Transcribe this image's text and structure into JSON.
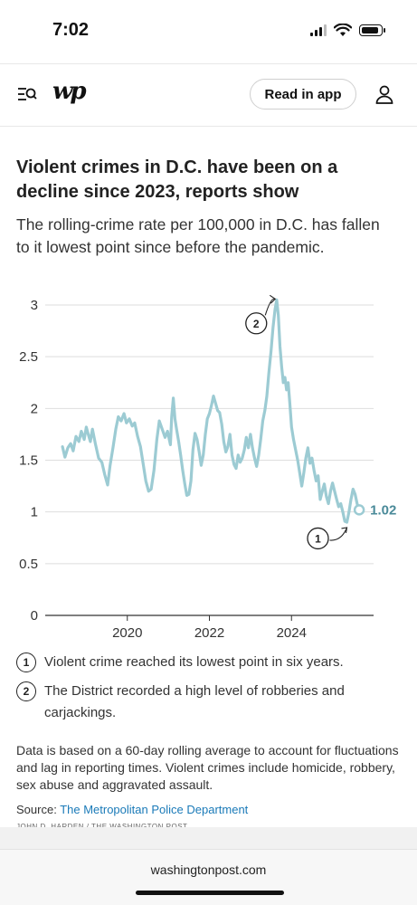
{
  "status_bar": {
    "time": "7:02"
  },
  "header": {
    "logo_text": "wp",
    "read_button": "Read in app"
  },
  "article": {
    "headline": "Violent crimes in D.C. have been on a decline since 2023, reports show",
    "dek": "The rolling-crime rate per 100,000 in D.C. has fallen to it lowest point since before the pandemic."
  },
  "notes": [
    {
      "num": "1",
      "text": "Violent crime reached its lowest point in six years."
    },
    {
      "num": "2",
      "text": "The District recorded a high level of robberies and carjackings."
    }
  ],
  "methodology": "Data is based on a 60-day rolling average to account for fluctuations and lag in reporting times. Violent crimes include homicide, robbery, sex abuse and aggravated assault.",
  "source_label": "Source: ",
  "source_link": "The Metropolitan Police Department",
  "credit": "JOHN D. HARDEN / THE WASHINGTON POST",
  "footer": {
    "url": "washingtonpost.com"
  },
  "colors": {
    "line": "#9ccbd3",
    "end_label": "#4a8a99"
  },
  "chart_data": {
    "type": "line",
    "title": "",
    "xlabel": "",
    "ylabel": "",
    "x_ticks": [
      2020,
      2022,
      2024
    ],
    "y_ticks": [
      "0",
      "0.5",
      "1",
      "1.5",
      "2",
      "2.5",
      "3"
    ],
    "ylim": [
      0,
      3
    ],
    "xlim": [
      2018.0,
      2026.0
    ],
    "grid": true,
    "end_label": "1.02",
    "annotation_markers": [
      {
        "num": "1",
        "x": 2025.35,
        "y": 0.91
      },
      {
        "num": "2",
        "x": 2023.67,
        "y": 3.05
      }
    ],
    "series": [
      {
        "points": [
          [
            2018.42,
            1.63
          ],
          [
            2018.48,
            1.53
          ],
          [
            2018.55,
            1.62
          ],
          [
            2018.62,
            1.66
          ],
          [
            2018.68,
            1.59
          ],
          [
            2018.75,
            1.73
          ],
          [
            2018.82,
            1.68
          ],
          [
            2018.88,
            1.78
          ],
          [
            2018.95,
            1.7
          ],
          [
            2019.0,
            1.82
          ],
          [
            2019.05,
            1.75
          ],
          [
            2019.1,
            1.68
          ],
          [
            2019.15,
            1.8
          ],
          [
            2019.22,
            1.66
          ],
          [
            2019.3,
            1.52
          ],
          [
            2019.38,
            1.48
          ],
          [
            2019.45,
            1.36
          ],
          [
            2019.52,
            1.26
          ],
          [
            2019.58,
            1.45
          ],
          [
            2019.65,
            1.62
          ],
          [
            2019.72,
            1.8
          ],
          [
            2019.78,
            1.92
          ],
          [
            2019.85,
            1.88
          ],
          [
            2019.92,
            1.95
          ],
          [
            2019.98,
            1.86
          ],
          [
            2020.05,
            1.9
          ],
          [
            2020.12,
            1.83
          ],
          [
            2020.18,
            1.86
          ],
          [
            2020.25,
            1.73
          ],
          [
            2020.32,
            1.63
          ],
          [
            2020.38,
            1.48
          ],
          [
            2020.45,
            1.3
          ],
          [
            2020.52,
            1.2
          ],
          [
            2020.58,
            1.22
          ],
          [
            2020.65,
            1.4
          ],
          [
            2020.72,
            1.7
          ],
          [
            2020.78,
            1.88
          ],
          [
            2020.85,
            1.8
          ],
          [
            2020.92,
            1.72
          ],
          [
            2020.98,
            1.78
          ],
          [
            2021.05,
            1.65
          ],
          [
            2021.08,
            1.92
          ],
          [
            2021.12,
            2.1
          ],
          [
            2021.16,
            1.9
          ],
          [
            2021.2,
            1.8
          ],
          [
            2021.25,
            1.68
          ],
          [
            2021.3,
            1.55
          ],
          [
            2021.35,
            1.4
          ],
          [
            2021.4,
            1.27
          ],
          [
            2021.45,
            1.16
          ],
          [
            2021.5,
            1.17
          ],
          [
            2021.55,
            1.3
          ],
          [
            2021.6,
            1.6
          ],
          [
            2021.65,
            1.76
          ],
          [
            2021.7,
            1.7
          ],
          [
            2021.75,
            1.58
          ],
          [
            2021.8,
            1.45
          ],
          [
            2021.85,
            1.55
          ],
          [
            2021.9,
            1.75
          ],
          [
            2021.95,
            1.9
          ],
          [
            2022.0,
            1.95
          ],
          [
            2022.05,
            2.03
          ],
          [
            2022.1,
            2.12
          ],
          [
            2022.15,
            2.05
          ],
          [
            2022.2,
            1.98
          ],
          [
            2022.25,
            1.96
          ],
          [
            2022.3,
            1.85
          ],
          [
            2022.35,
            1.68
          ],
          [
            2022.4,
            1.58
          ],
          [
            2022.45,
            1.63
          ],
          [
            2022.5,
            1.75
          ],
          [
            2022.55,
            1.55
          ],
          [
            2022.6,
            1.46
          ],
          [
            2022.65,
            1.42
          ],
          [
            2022.7,
            1.55
          ],
          [
            2022.75,
            1.48
          ],
          [
            2022.8,
            1.52
          ],
          [
            2022.85,
            1.6
          ],
          [
            2022.9,
            1.72
          ],
          [
            2022.95,
            1.62
          ],
          [
            2023.0,
            1.75
          ],
          [
            2023.05,
            1.62
          ],
          [
            2023.1,
            1.52
          ],
          [
            2023.15,
            1.44
          ],
          [
            2023.2,
            1.55
          ],
          [
            2023.25,
            1.7
          ],
          [
            2023.3,
            1.88
          ],
          [
            2023.35,
            1.98
          ],
          [
            2023.4,
            2.12
          ],
          [
            2023.45,
            2.35
          ],
          [
            2023.5,
            2.55
          ],
          [
            2023.55,
            2.78
          ],
          [
            2023.6,
            2.96
          ],
          [
            2023.64,
            3.05
          ],
          [
            2023.68,
            2.9
          ],
          [
            2023.72,
            2.6
          ],
          [
            2023.76,
            2.4
          ],
          [
            2023.8,
            2.25
          ],
          [
            2023.84,
            2.3
          ],
          [
            2023.88,
            2.18
          ],
          [
            2023.92,
            2.25
          ],
          [
            2023.96,
            2.05
          ],
          [
            2024.0,
            1.82
          ],
          [
            2024.05,
            1.7
          ],
          [
            2024.1,
            1.6
          ],
          [
            2024.15,
            1.5
          ],
          [
            2024.2,
            1.38
          ],
          [
            2024.25,
            1.25
          ],
          [
            2024.3,
            1.38
          ],
          [
            2024.35,
            1.52
          ],
          [
            2024.4,
            1.62
          ],
          [
            2024.45,
            1.47
          ],
          [
            2024.5,
            1.52
          ],
          [
            2024.55,
            1.4
          ],
          [
            2024.6,
            1.3
          ],
          [
            2024.65,
            1.35
          ],
          [
            2024.7,
            1.12
          ],
          [
            2024.75,
            1.2
          ],
          [
            2024.8,
            1.27
          ],
          [
            2024.85,
            1.15
          ],
          [
            2024.9,
            1.08
          ],
          [
            2024.95,
            1.2
          ],
          [
            2025.0,
            1.28
          ],
          [
            2025.05,
            1.2
          ],
          [
            2025.1,
            1.12
          ],
          [
            2025.15,
            1.05
          ],
          [
            2025.2,
            1.08
          ],
          [
            2025.25,
            1.0
          ],
          [
            2025.3,
            0.91
          ],
          [
            2025.35,
            0.9
          ],
          [
            2025.4,
            1.0
          ],
          [
            2025.45,
            1.12
          ],
          [
            2025.5,
            1.22
          ],
          [
            2025.55,
            1.17
          ],
          [
            2025.6,
            1.08
          ],
          [
            2025.65,
            1.02
          ]
        ]
      }
    ]
  }
}
